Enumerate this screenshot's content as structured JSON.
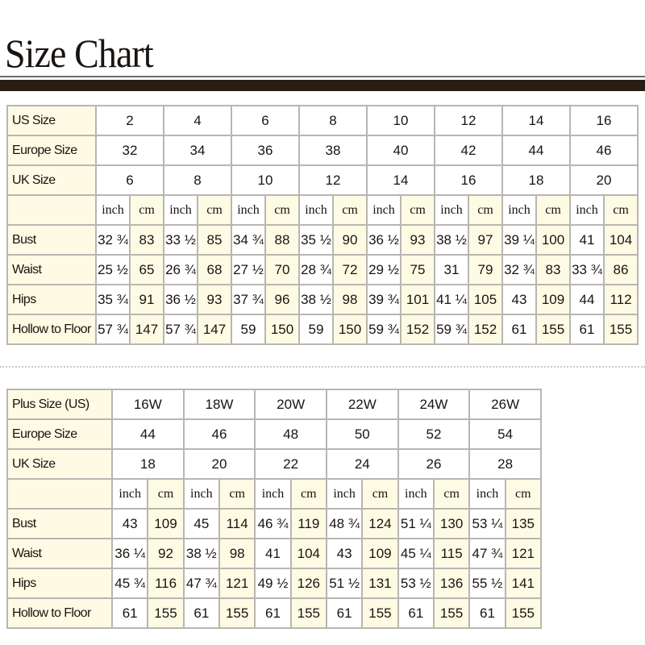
{
  "title": "Size Chart",
  "units": {
    "inch": "inch",
    "cm": "cm"
  },
  "standard": {
    "rows": [
      {
        "label": "US Size",
        "values": [
          "2",
          "4",
          "6",
          "8",
          "10",
          "12",
          "14",
          "16"
        ]
      },
      {
        "label": "Europe Size",
        "values": [
          "32",
          "34",
          "36",
          "38",
          "40",
          "42",
          "44",
          "46"
        ]
      },
      {
        "label": "UK Size",
        "values": [
          "6",
          "8",
          "10",
          "12",
          "14",
          "16",
          "18",
          "20"
        ]
      }
    ],
    "measurements": [
      {
        "label": "Bust",
        "values": [
          [
            "32 ¾",
            "83"
          ],
          [
            "33 ½",
            "85"
          ],
          [
            "34 ¾",
            "88"
          ],
          [
            "35 ½",
            "90"
          ],
          [
            "36 ½",
            "93"
          ],
          [
            "38 ½",
            "97"
          ],
          [
            "39 ¼",
            "100"
          ],
          [
            "41",
            "104"
          ]
        ]
      },
      {
        "label": "Waist",
        "values": [
          [
            "25 ½",
            "65"
          ],
          [
            "26 ¾",
            "68"
          ],
          [
            "27 ½",
            "70"
          ],
          [
            "28 ¾",
            "72"
          ],
          [
            "29 ½",
            "75"
          ],
          [
            "31",
            "79"
          ],
          [
            "32 ¾",
            "83"
          ],
          [
            "33 ¾",
            "86"
          ]
        ]
      },
      {
        "label": "Hips",
        "values": [
          [
            "35 ¾",
            "91"
          ],
          [
            "36 ½",
            "93"
          ],
          [
            "37 ¾",
            "96"
          ],
          [
            "38 ½",
            "98"
          ],
          [
            "39 ¾",
            "101"
          ],
          [
            "41 ¼",
            "105"
          ],
          [
            "43",
            "109"
          ],
          [
            "44",
            "112"
          ]
        ]
      },
      {
        "label": "Hollow to Floor",
        "values": [
          [
            "57 ¾",
            "147"
          ],
          [
            "57 ¾",
            "147"
          ],
          [
            "59",
            "150"
          ],
          [
            "59",
            "150"
          ],
          [
            "59 ¾",
            "152"
          ],
          [
            "59 ¾",
            "152"
          ],
          [
            "61",
            "155"
          ],
          [
            "61",
            "155"
          ]
        ]
      }
    ]
  },
  "plus": {
    "rows": [
      {
        "label": "Plus Size (US)",
        "values": [
          "16W",
          "18W",
          "20W",
          "22W",
          "24W",
          "26W"
        ]
      },
      {
        "label": "Europe Size",
        "values": [
          "44",
          "46",
          "48",
          "50",
          "52",
          "54"
        ]
      },
      {
        "label": "UK Size",
        "values": [
          "18",
          "20",
          "22",
          "24",
          "26",
          "28"
        ]
      }
    ],
    "measurements": [
      {
        "label": "Bust",
        "values": [
          [
            "43",
            "109"
          ],
          [
            "45",
            "114"
          ],
          [
            "46 ¾",
            "119"
          ],
          [
            "48 ¾",
            "124"
          ],
          [
            "51 ¼",
            "130"
          ],
          [
            "53 ¼",
            "135"
          ]
        ]
      },
      {
        "label": "Waist",
        "values": [
          [
            "36 ¼",
            "92"
          ],
          [
            "38 ½",
            "98"
          ],
          [
            "41",
            "104"
          ],
          [
            "43",
            "109"
          ],
          [
            "45 ¼",
            "115"
          ],
          [
            "47 ¾",
            "121"
          ]
        ]
      },
      {
        "label": "Hips",
        "values": [
          [
            "45 ¾",
            "116"
          ],
          [
            "47 ¾",
            "121"
          ],
          [
            "49 ½",
            "126"
          ],
          [
            "51 ½",
            "131"
          ],
          [
            "53 ½",
            "136"
          ],
          [
            "55 ½",
            "141"
          ]
        ]
      },
      {
        "label": "Hollow to Floor",
        "values": [
          [
            "61",
            "155"
          ],
          [
            "61",
            "155"
          ],
          [
            "61",
            "155"
          ],
          [
            "61",
            "155"
          ],
          [
            "61",
            "155"
          ],
          [
            "61",
            "155"
          ]
        ]
      }
    ]
  },
  "colors": {
    "header_bar": "#2a1d16",
    "label_fill": "#fdfbe4",
    "border": "#b9b6b1"
  }
}
